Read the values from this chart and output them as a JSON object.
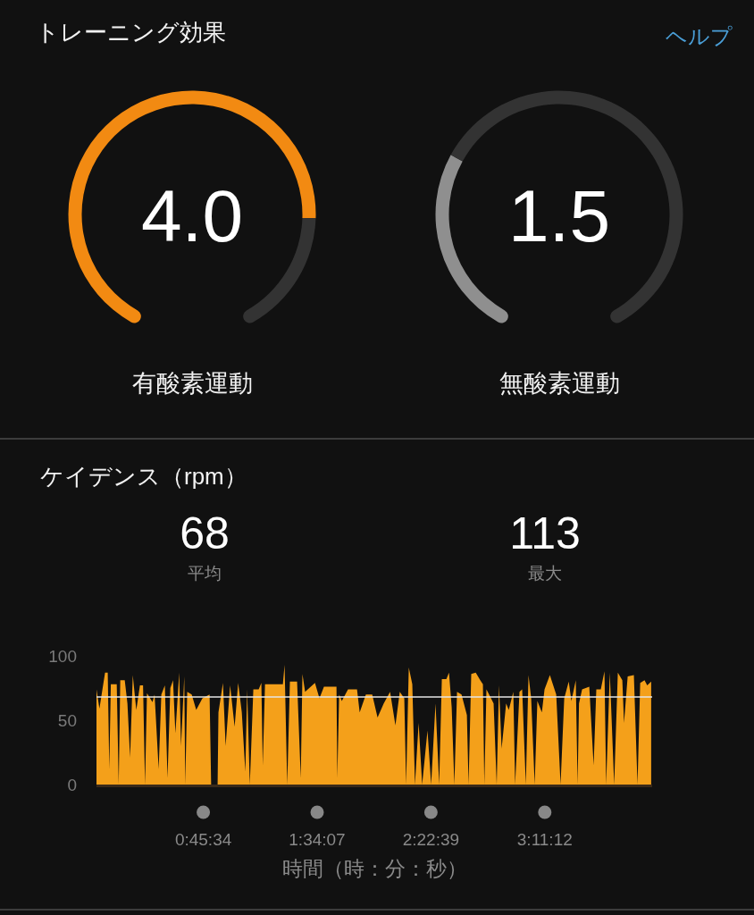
{
  "chart_data": [
    {
      "type": "other",
      "title": "トレーニング効果",
      "annotations": [
        "ヘルプ"
      ]
    },
    {
      "type": "donut",
      "title": "有酸素運動",
      "categories": [
        null,
        null
      ],
      "values": [
        80,
        20
      ],
      "colors": [
        "#f28a12",
        "#333333"
      ],
      "annotations": [
        "4.0"
      ]
    },
    {
      "type": "donut",
      "title": "無酸素運動",
      "categories": [
        null,
        null
      ],
      "values": [
        30,
        70
      ],
      "colors": [
        "#8f8f8f",
        "#333333"
      ],
      "annotations": [
        "1.5"
      ]
    },
    {
      "type": "area",
      "title": "ケイデンス（rpm）",
      "annotations": [
        "68",
        "平均",
        "113",
        "最大"
      ],
      "xlabel": "時間（時：分：秒）",
      "color": "#f4a01a",
      "x": [
        0.0,
        0.021,
        0.061,
        0.08,
        0.091,
        0.102,
        0.144,
        0.158,
        0.169,
        0.201,
        0.22,
        0.239,
        0.258,
        0.283,
        0.309,
        0.331,
        0.345,
        0.359,
        0.398,
        0.413,
        0.442,
        0.461,
        0.486,
        0.505,
        0.525,
        0.544,
        0.561,
        0.588,
        0.601,
        0.624,
        0.631,
        0.645,
        0.677,
        0.709,
        0.753,
        0.804,
        0.815,
        0.861,
        0.867,
        0.899,
        0.918,
        0.95,
        0.982,
        1.007,
        1.033,
        1.058,
        1.071,
        1.09,
        1.115,
        1.153,
        1.172,
        1.182,
        1.198,
        1.325,
        1.337,
        1.356,
        1.375,
        1.426,
        1.452,
        1.464,
        1.483,
        1.553,
        1.585,
        1.617,
        1.706,
        1.712,
        1.725,
        1.744,
        1.788,
        1.852,
        1.871,
        1.915,
        1.96,
        1.998,
        2.042,
        2.087,
        2.125,
        2.156,
        2.188,
        2.201,
        2.22,
        2.245,
        2.264,
        2.29,
        2.315,
        2.353,
        2.379,
        2.41,
        2.436,
        2.455,
        2.487,
        2.506,
        2.525,
        2.544,
        2.563,
        2.595,
        2.633,
        2.645,
        2.664,
        2.696,
        2.728,
        2.747,
        2.757,
        2.772,
        2.791,
        2.823,
        2.845,
        2.861,
        2.88,
        2.912,
        2.931,
        2.963,
        2.976,
        3.007,
        3.026,
        3.052,
        3.071,
        3.09,
        3.115,
        3.134,
        3.166,
        3.185,
        3.223,
        3.268,
        3.299,
        3.325,
        3.357,
        3.376,
        3.407,
        3.42,
        3.43,
        3.452,
        3.503,
        3.534,
        3.553,
        3.585,
        3.611,
        3.623,
        3.649,
        3.68,
        3.706,
        3.738,
        3.75,
        3.776,
        3.82,
        3.846,
        3.865,
        3.896,
        3.915,
        3.943
      ],
      "values": [
        74,
        59,
        87,
        87,
        12,
        78,
        78,
        0,
        81,
        81,
        63,
        21,
        85,
        58,
        77,
        77,
        0,
        71,
        64,
        70,
        12,
        70,
        77,
        5,
        75,
        81,
        40,
        87,
        30,
        84,
        0,
        72,
        70,
        58,
        67,
        70,
        0,
        0,
        56,
        79,
        30,
        77,
        45,
        79,
        56,
        10,
        74,
        0,
        74,
        74,
        79,
        15,
        78,
        78,
        93,
        0,
        80,
        80,
        5,
        86,
        72,
        79,
        67,
        76,
        76,
        5,
        70,
        65,
        74,
        74,
        56,
        70,
        70,
        52,
        63,
        72,
        46,
        72,
        67,
        0,
        91,
        78,
        0,
        48,
        0,
        42,
        0,
        63,
        0,
        82,
        82,
        87,
        60,
        0,
        72,
        70,
        54,
        0,
        86,
        87,
        81,
        78,
        0,
        74,
        70,
        63,
        0,
        77,
        28,
        63,
        58,
        72,
        0,
        72,
        74,
        0,
        85,
        67,
        0,
        65,
        56,
        74,
        85,
        70,
        0,
        67,
        80,
        65,
        81,
        0,
        63,
        74,
        76,
        15,
        74,
        74,
        88,
        0,
        87,
        0,
        87,
        81,
        48,
        84,
        85,
        0,
        79,
        81,
        77,
        80
      ],
      "xlim": [
        0,
        3.95
      ],
      "xticks": [
        {
          "value": 0.7594,
          "label": "0:45:34"
        },
        {
          "value": 1.5686,
          "label": "1:34:07"
        },
        {
          "value": 2.3775,
          "label": "2:22:39"
        },
        {
          "value": 3.1867,
          "label": "3:11:12"
        }
      ],
      "ylim": [
        0,
        100
      ],
      "yticks": [
        0,
        50,
        100
      ],
      "ref_lines": [
        {
          "axis": "y",
          "value": 68,
          "color": "#e6e6e6"
        }
      ]
    }
  ]
}
